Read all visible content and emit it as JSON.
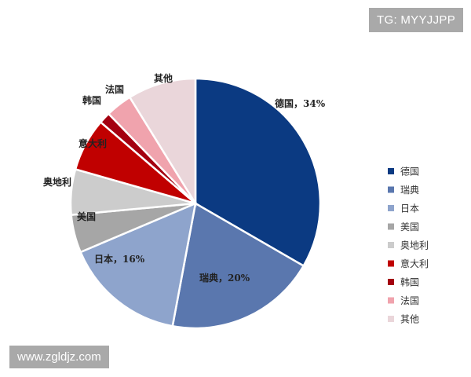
{
  "watermarks": {
    "top": "TG: MYYJJPP",
    "bottom": "www.zgldjz.com"
  },
  "chart_data": {
    "type": "pie",
    "categories": [
      "德国",
      "瑞典",
      "日本",
      "美国",
      "奥地利",
      "意大利",
      "韩国",
      "法国",
      "其他"
    ],
    "values": [
      34,
      20,
      16,
      5,
      6,
      7,
      1.5,
      3.5,
      9
    ],
    "colors": [
      "#0b3a82",
      "#5a77ae",
      "#8ea4cc",
      "#a6a6a6",
      "#cccccc",
      "#c00000",
      "#a40010",
      "#f0a3ad",
      "#ead6da"
    ],
    "slice_labels": [
      "德国，34%",
      "瑞典，20%",
      "日本，16%",
      "美国",
      "奥地利",
      "意大利",
      "韩国",
      "法国",
      "其他"
    ],
    "legend_position": "right"
  }
}
